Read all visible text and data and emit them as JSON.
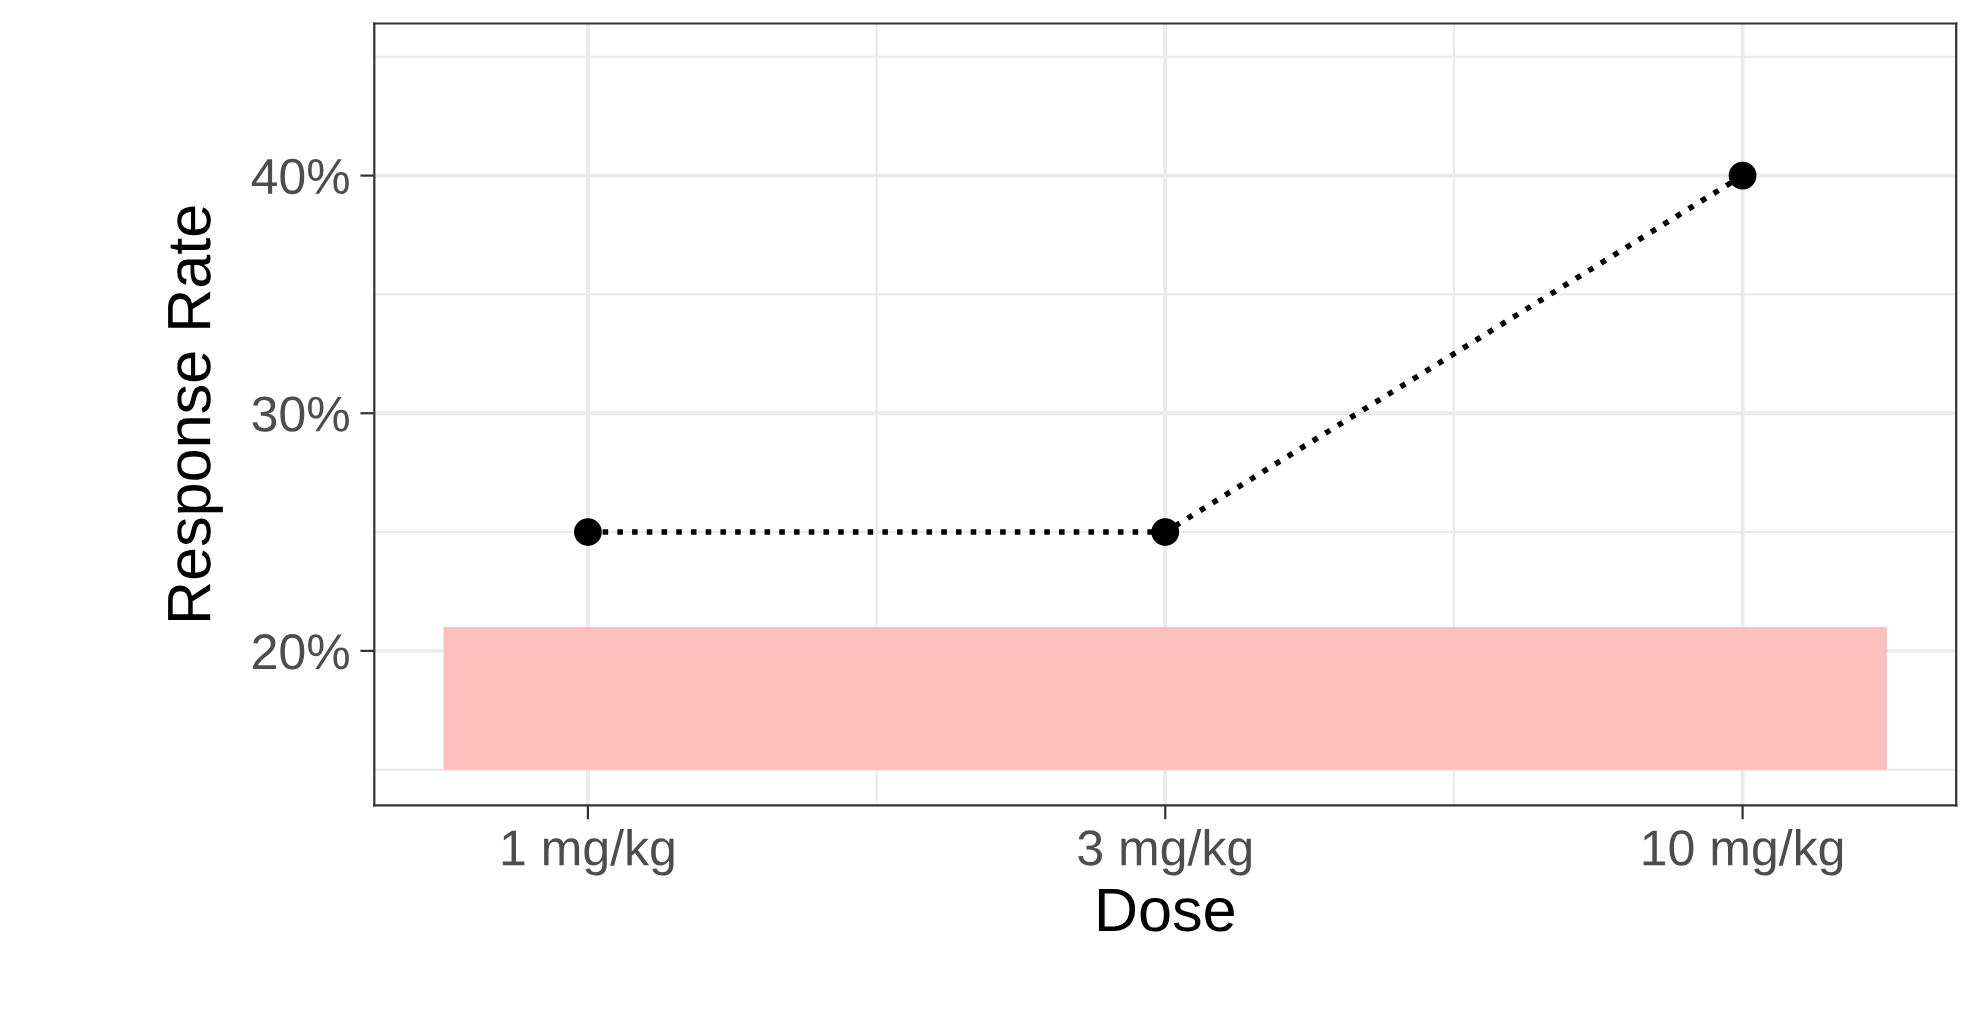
{
  "chart_data": {
    "type": "line",
    "xlabel": "Dose",
    "ylabel": "Response Rate",
    "categories": [
      "1 mg/kg",
      "3 mg/kg",
      "10 mg/kg"
    ],
    "series": [
      {
        "color": "#000000",
        "values": [
          25,
          25,
          40
        ]
      }
    ],
    "ylim": [
      13.5,
      46.4
    ],
    "yticks": [
      {
        "value": 20,
        "label": "20%"
      },
      {
        "value": 30,
        "label": "30%"
      },
      {
        "value": 40,
        "label": "40%"
      }
    ],
    "bands": [
      {
        "axis": "y",
        "from": 15,
        "to": 21,
        "color": "#ffbfbf"
      }
    ],
    "grid": true,
    "marker": "circle",
    "line_style": "dotted"
  }
}
